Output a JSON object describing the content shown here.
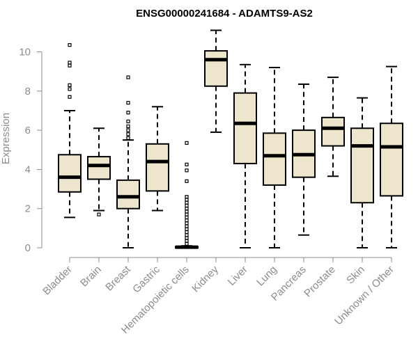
{
  "chart_data": {
    "type": "boxplot",
    "title": "ENSG00000241684 - ADAMTS9-AS2",
    "xlabel": "",
    "ylabel": "Expression",
    "ylim": [
      0,
      11.2
    ],
    "yticks": [
      0,
      2,
      4,
      6,
      8,
      10
    ],
    "box_color": "#ede6cc",
    "categories": [
      "Bladder",
      "Brain",
      "Breast",
      "Gastric",
      "Hematopoietic cells",
      "Kidney",
      "Liver",
      "Lung",
      "Pancreas",
      "Prostate",
      "Skin",
      "Unknown / Other"
    ],
    "boxes": [
      {
        "category": "Bladder",
        "whisker_low": 1.55,
        "q1": 2.85,
        "median": 3.6,
        "q3": 4.75,
        "whisker_high": 7.0,
        "outliers": [
          7.7,
          8.1,
          8.3,
          9.3,
          9.45,
          10.35
        ]
      },
      {
        "category": "Brain",
        "whisker_low": 1.9,
        "q1": 3.5,
        "median": 4.2,
        "q3": 4.65,
        "whisker_high": 6.1,
        "outliers": [
          1.7
        ]
      },
      {
        "category": "Breast",
        "whisker_low": 0.0,
        "q1": 2.0,
        "median": 2.6,
        "q3": 3.45,
        "whisker_high": 5.5,
        "outliers": [
          5.6,
          5.8,
          6.0,
          6.2,
          6.45,
          6.9,
          7.4,
          8.7
        ]
      },
      {
        "category": "Gastric",
        "whisker_low": 1.9,
        "q1": 2.9,
        "median": 4.4,
        "q3": 5.3,
        "whisker_high": 7.2,
        "outliers": []
      },
      {
        "category": "Hematopoietic cells",
        "whisker_low": 0.0,
        "q1": 0.0,
        "median": 0.03,
        "q3": 0.06,
        "whisker_high": 0.1,
        "outliers": [
          0.2,
          0.35,
          0.5,
          0.65,
          0.8,
          0.95,
          1.1,
          1.25,
          1.4,
          1.55,
          1.7,
          1.85,
          2.0,
          2.15,
          2.3,
          2.45,
          2.6,
          3.4,
          3.95,
          4.25,
          5.35
        ]
      },
      {
        "category": "Kidney",
        "whisker_low": 5.9,
        "q1": 8.25,
        "median": 9.6,
        "q3": 10.05,
        "whisker_high": 11.1,
        "outliers": []
      },
      {
        "category": "Liver",
        "whisker_low": 0.0,
        "q1": 4.3,
        "median": 6.35,
        "q3": 7.9,
        "whisker_high": 9.35,
        "outliers": []
      },
      {
        "category": "Lung",
        "whisker_low": 0.0,
        "q1": 3.2,
        "median": 4.7,
        "q3": 5.85,
        "whisker_high": 9.2,
        "outliers": []
      },
      {
        "category": "Pancreas",
        "whisker_low": 0.65,
        "q1": 3.6,
        "median": 4.75,
        "q3": 6.0,
        "whisker_high": 8.35,
        "outliers": []
      },
      {
        "category": "Prostate",
        "whisker_low": 3.65,
        "q1": 5.2,
        "median": 6.1,
        "q3": 6.65,
        "whisker_high": 8.7,
        "outliers": []
      },
      {
        "category": "Skin",
        "whisker_low": 0.0,
        "q1": 2.3,
        "median": 5.2,
        "q3": 6.1,
        "whisker_high": 7.65,
        "outliers": []
      },
      {
        "category": "Unknown / Other",
        "whisker_low": 0.0,
        "q1": 2.65,
        "median": 5.15,
        "q3": 6.35,
        "whisker_high": 9.25,
        "outliers": []
      }
    ]
  }
}
